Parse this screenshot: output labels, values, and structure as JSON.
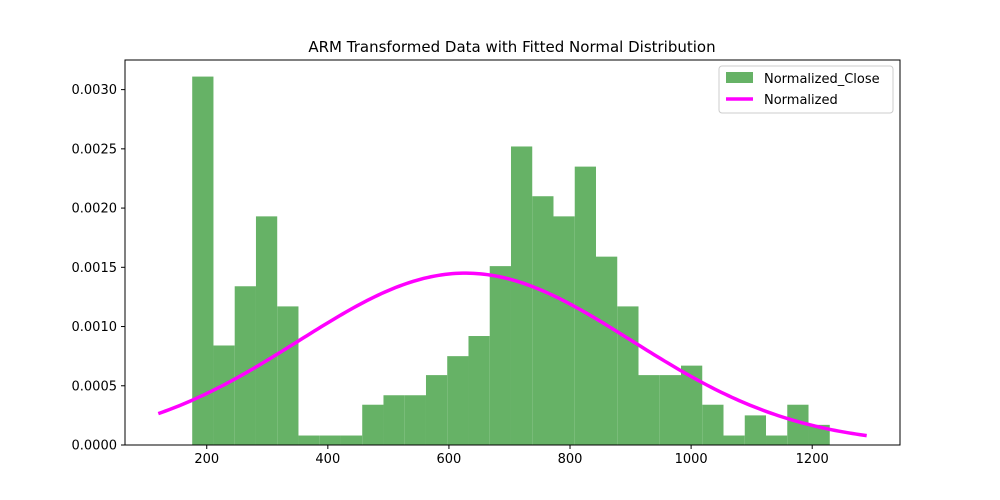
{
  "chart_data": {
    "type": "bar",
    "title": "ARM Transformed Data with Fitted Normal Distribution",
    "xlabel": "",
    "ylabel": "",
    "xlim": [
      65,
      1345
    ],
    "ylim": [
      0,
      0.00325
    ],
    "x_ticks": [
      200,
      400,
      600,
      800,
      1000,
      1200
    ],
    "x_tick_labels": [
      "200",
      "400",
      "600",
      "800",
      "1000",
      "1200"
    ],
    "y_ticks": [
      0,
      0.0005,
      0.001,
      0.0015,
      0.002,
      0.0025,
      0.003
    ],
    "y_tick_labels": [
      "0.0000",
      "0.0005",
      "0.0010",
      "0.0015",
      "0.0020",
      "0.0025",
      "0.0030"
    ],
    "grid": false,
    "legend_position": "top-right",
    "histogram": {
      "name": "Normalized_Close",
      "color": "#66b266",
      "bin_start": 176,
      "bin_width": 35.1,
      "values": [
        0.00311,
        0.00084,
        0.00134,
        0.00193,
        0.00117,
        8e-05,
        8e-05,
        8e-05,
        0.00034,
        0.00042,
        0.00042,
        0.00059,
        0.00075,
        0.00092,
        0.00151,
        0.00252,
        0.0021,
        0.00193,
        0.00235,
        0.00159,
        0.00117,
        0.00059,
        0.00059,
        0.00067,
        0.00034,
        8e-05,
        0.00025,
        8e-05,
        0.00034,
        0.00017
      ]
    },
    "curve": {
      "name": "Normalized",
      "color": "#ff00ff",
      "type": "normal_pdf",
      "mean": 627,
      "std": 275,
      "x_range": [
        120,
        1290
      ]
    }
  }
}
